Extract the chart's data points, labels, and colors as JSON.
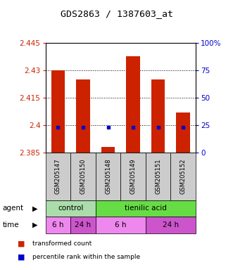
{
  "title": "GDS2863 / 1387603_at",
  "samples": [
    "GSM205147",
    "GSM205150",
    "GSM205148",
    "GSM205149",
    "GSM205151",
    "GSM205152"
  ],
  "bar_values": [
    2.43,
    2.425,
    2.388,
    2.438,
    2.425,
    2.407
  ],
  "bar_bottom": 2.385,
  "pct_y": [
    2.399,
    2.399,
    2.399,
    2.399,
    2.399,
    2.399
  ],
  "ylim": [
    2.385,
    2.445
  ],
  "y_ticks": [
    2.385,
    2.4,
    2.415,
    2.43,
    2.445
  ],
  "y_tick_labels": [
    "2.385",
    "2.4",
    "2.415",
    "2.43",
    "2.445"
  ],
  "y2_ticks": [
    0,
    25,
    50,
    75,
    100
  ],
  "y2_tick_labels": [
    "0",
    "25",
    "50",
    "75",
    "100%"
  ],
  "hlines": [
    2.4,
    2.415,
    2.43
  ],
  "bar_color": "#cc2200",
  "percentile_color": "#0000cc",
  "agent_groups": [
    {
      "label": "control",
      "start": 0,
      "end": 2,
      "color": "#aaddaa"
    },
    {
      "label": "tienilic acid",
      "start": 2,
      "end": 6,
      "color": "#66dd44"
    }
  ],
  "time_groups": [
    {
      "label": "6 h",
      "start": 0,
      "end": 1,
      "color": "#ee88ee"
    },
    {
      "label": "24 h",
      "start": 1,
      "end": 2,
      "color": "#cc55cc"
    },
    {
      "label": "6 h",
      "start": 2,
      "end": 4,
      "color": "#ee88ee"
    },
    {
      "label": "24 h",
      "start": 4,
      "end": 6,
      "color": "#cc55cc"
    }
  ],
  "sample_label_color": "#cccccc",
  "background_color": "#ffffff"
}
